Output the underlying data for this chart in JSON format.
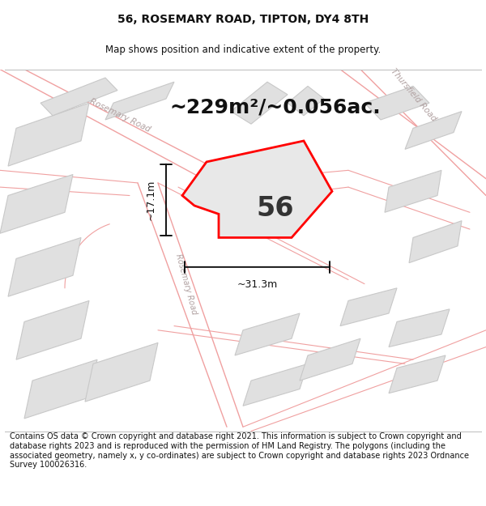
{
  "title": "56, ROSEMARY ROAD, TIPTON, DY4 8TH",
  "subtitle": "Map shows position and indicative extent of the property.",
  "footer": "Contains OS data © Crown copyright and database right 2021. This information is subject to Crown copyright and database rights 2023 and is reproduced with the permission of HM Land Registry. The polygons (including the associated geometry, namely x, y co-ordinates) are subject to Crown copyright and database rights 2023 Ordnance Survey 100026316.",
  "area_label": "~229m²/~0.056ac.",
  "number_label": "56",
  "width_label": "~31.3m",
  "height_label": "~17.1m",
  "map_bg": "#f8f7f7",
  "road_color": "#f0a0a0",
  "block_fill": "#e0e0e0",
  "block_edge": "#c8c8c8",
  "property_color": "#ff0000",
  "property_fill": "#e8e8e8",
  "dim_line_color": "#111111",
  "road_label_color": "#b0a0a0",
  "title_fontsize": 10,
  "subtitle_fontsize": 8.5,
  "area_fontsize": 18,
  "number_fontsize": 24,
  "footer_fontsize": 7.0
}
